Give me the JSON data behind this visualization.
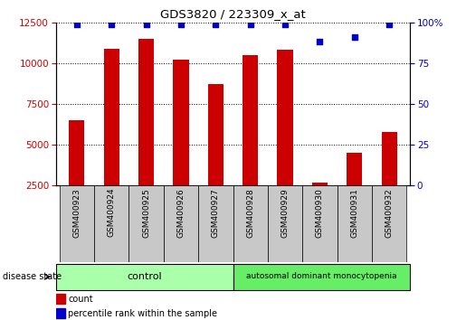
{
  "title": "GDS3820 / 223309_x_at",
  "samples": [
    "GSM400923",
    "GSM400924",
    "GSM400925",
    "GSM400926",
    "GSM400927",
    "GSM400928",
    "GSM400929",
    "GSM400930",
    "GSM400931",
    "GSM400932"
  ],
  "counts": [
    6500,
    10900,
    11500,
    10200,
    8700,
    10500,
    10800,
    2700,
    4500,
    5800
  ],
  "percentiles": [
    99,
    99,
    99,
    99,
    99,
    99,
    99,
    88,
    91,
    99
  ],
  "bar_color": "#cc0000",
  "dot_color": "#0000cc",
  "n_control": 5,
  "control_label": "control",
  "disease_label": "autosomal dominant monocytopenia",
  "disease_state_label": "disease state",
  "legend_count": "count",
  "legend_pct": "percentile rank within the sample",
  "ylim_left": [
    2500,
    12500
  ],
  "ylim_right": [
    0,
    100
  ],
  "yticks_left": [
    2500,
    5000,
    7500,
    10000,
    12500
  ],
  "yticks_right": [
    0,
    25,
    50,
    75,
    100
  ],
  "control_color": "#aaffaa",
  "disease_color": "#66ee66",
  "tick_area_color": "#c8c8c8"
}
